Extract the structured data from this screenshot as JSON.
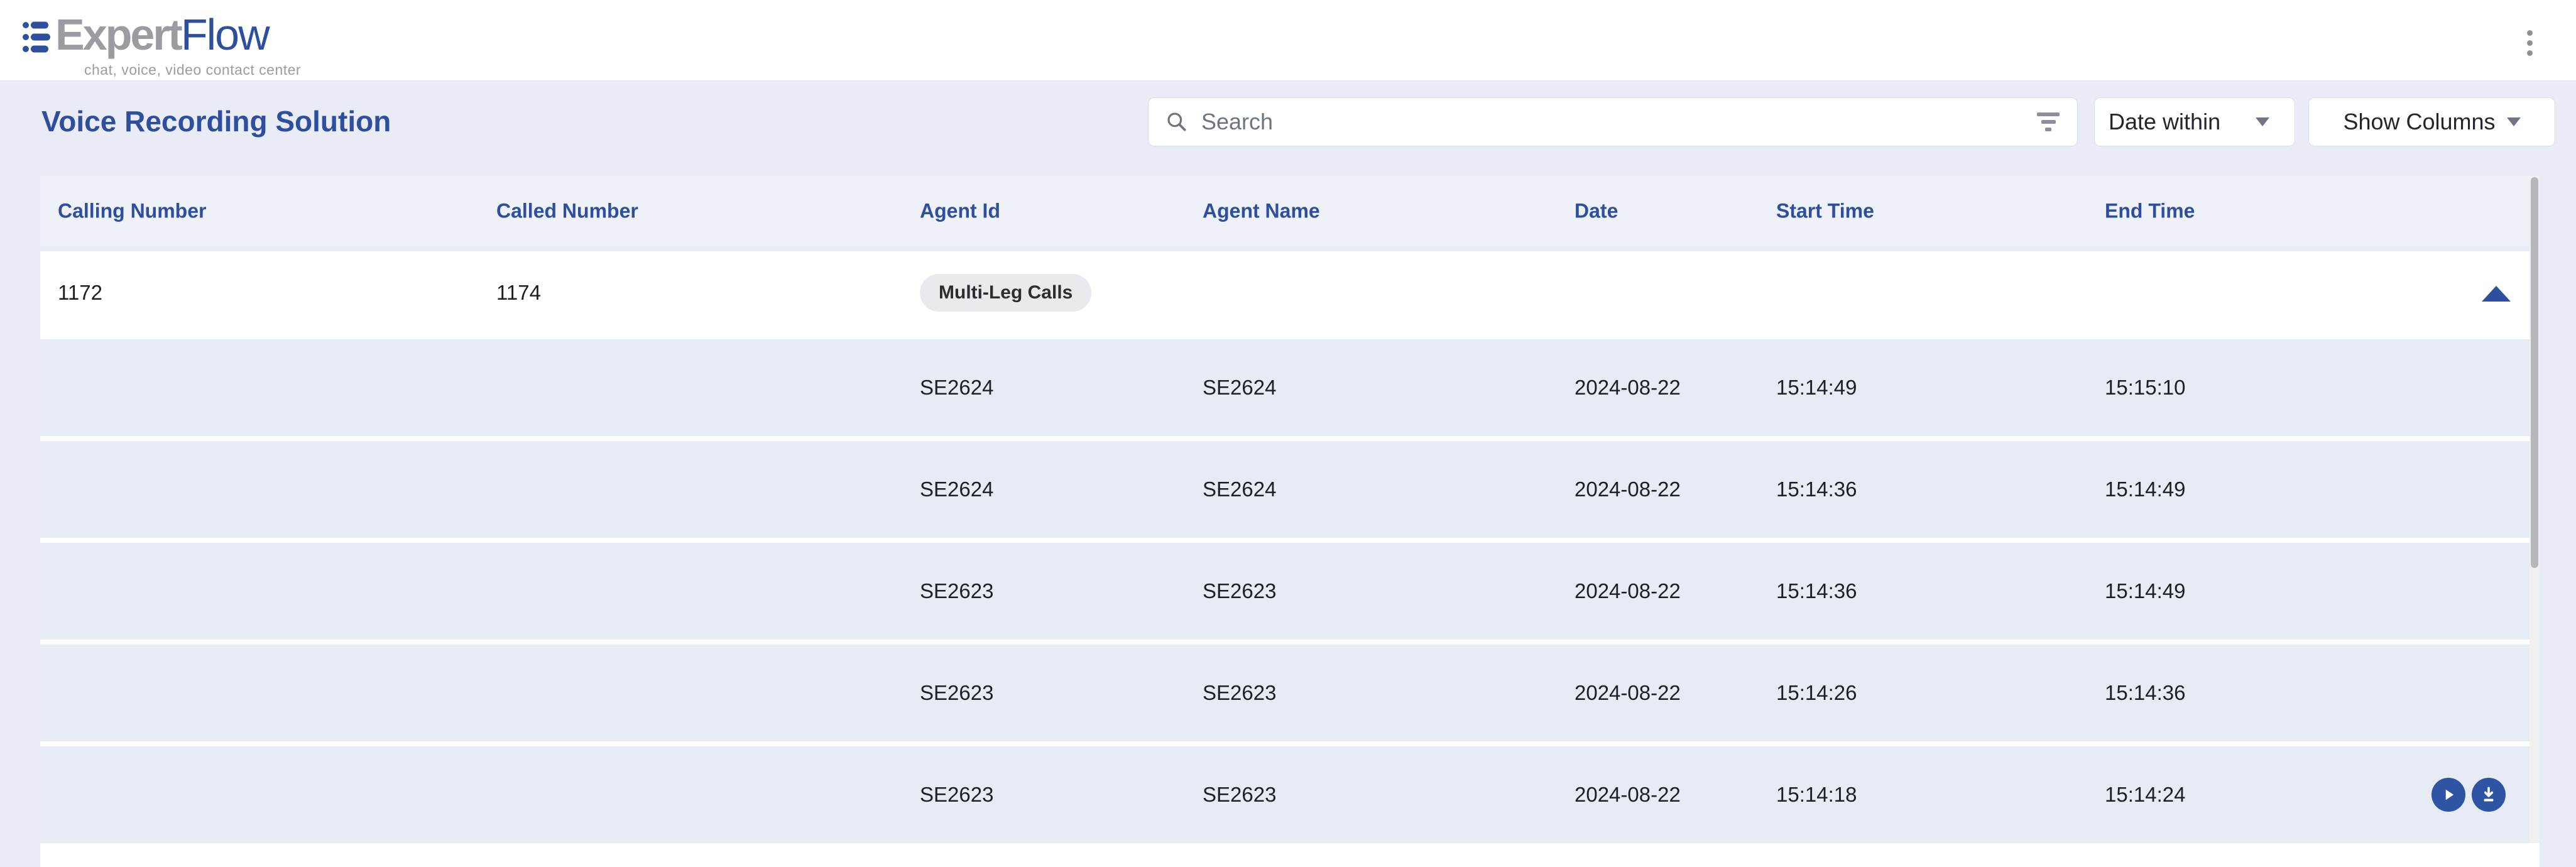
{
  "brand": {
    "primary": "Expert",
    "secondary": "Flow",
    "tagline": "chat, voice, video contact center",
    "logo_icon": "three-bars-with-dots"
  },
  "header_bar": {
    "menu_icon": "kebab-vertical"
  },
  "page": {
    "title": "Voice Recording Solution"
  },
  "toolbar": {
    "search": {
      "placeholder": "Search",
      "value": "",
      "leading_icon": "magnifier",
      "trailing_icon": "filter-bars"
    },
    "date_within": {
      "label": "Date within",
      "icon": "caret-down"
    },
    "show_columns": {
      "label": "Show Columns",
      "icon": "caret-down"
    }
  },
  "table": {
    "columns": [
      "Calling Number",
      "Called Number",
      "Agent Id",
      "Agent Name",
      "Date",
      "Start Time",
      "End Time"
    ],
    "group_row": {
      "calling_number": "1172",
      "called_number": "1174",
      "badge": "Multi-Leg Calls",
      "collapse_icon": "triangle-up"
    },
    "rows": [
      {
        "agent_id": "SE2624",
        "agent_name": "SE2624",
        "date": "2024-08-22",
        "start_time": "15:14:49",
        "end_time": "15:15:10",
        "has_actions": false
      },
      {
        "agent_id": "SE2624",
        "agent_name": "SE2624",
        "date": "2024-08-22",
        "start_time": "15:14:36",
        "end_time": "15:14:49",
        "has_actions": false
      },
      {
        "agent_id": "SE2623",
        "agent_name": "SE2623",
        "date": "2024-08-22",
        "start_time": "15:14:36",
        "end_time": "15:14:49",
        "has_actions": false
      },
      {
        "agent_id": "SE2623",
        "agent_name": "SE2623",
        "date": "2024-08-22",
        "start_time": "15:14:26",
        "end_time": "15:14:36",
        "has_actions": false
      },
      {
        "agent_id": "SE2623",
        "agent_name": "SE2623",
        "date": "2024-08-22",
        "start_time": "15:14:18",
        "end_time": "15:14:24",
        "has_actions": true
      }
    ],
    "row_action_icons": [
      "play",
      "download"
    ]
  },
  "colors": {
    "accent": "#2d4f9e",
    "icon_button_bg": "#2e54a3",
    "page_bg": "#e9ecf5",
    "table_header_bg": "#eef1f7",
    "row_bg": "#e7ebf4",
    "badge_bg": "#e8eaee",
    "text": "#1d1f23",
    "muted": "#6f7680"
  }
}
